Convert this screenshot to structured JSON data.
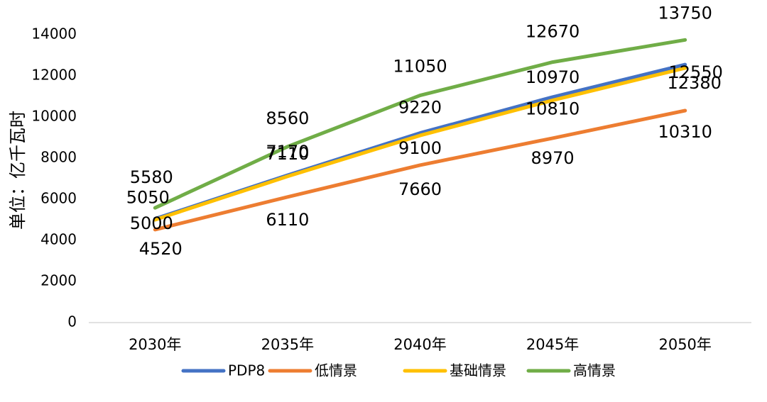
{
  "chart_data": {
    "type": "line",
    "title": "",
    "xlabel": "",
    "ylabel": "单位：亿千瓦时",
    "categories": [
      "2030年",
      "2035年",
      "2040年",
      "2045年",
      "2050年"
    ],
    "ylim": [
      0,
      14000
    ],
    "yticks": [
      0,
      2000,
      4000,
      6000,
      8000,
      10000,
      12000,
      14000
    ],
    "grid": false,
    "legend_position": "bottom",
    "series": [
      {
        "name": "PDP8",
        "color": "#4472C4",
        "values": [
          5050,
          7170,
          9220,
          10970,
          12550
        ]
      },
      {
        "name": "低情景",
        "color": "#ED7D31",
        "values": [
          4520,
          6110,
          7660,
          8970,
          10310
        ]
      },
      {
        "name": "基础情景",
        "color": "#FFC000",
        "values": [
          5000,
          7110,
          9100,
          10810,
          12380
        ]
      },
      {
        "name": "高情景",
        "color": "#70AD47",
        "values": [
          5580,
          8560,
          11050,
          12670,
          13750
        ]
      }
    ]
  }
}
